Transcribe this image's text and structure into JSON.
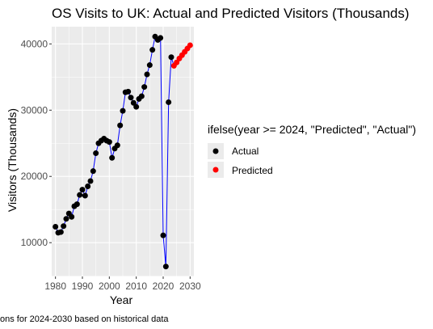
{
  "chart_data": {
    "type": "scatter",
    "title": "OS Visits to UK: Actual and Predicted Visitors (Thousands)",
    "xlabel": "Year",
    "ylabel": "Visitors (Thousands)",
    "caption": "ons for 2024-2030 based on historical data",
    "xlim": [
      1978.6,
      2031.4
    ],
    "ylim": [
      4900,
      42600
    ],
    "x_ticks": [
      1980,
      1990,
      2000,
      2010,
      2020,
      2030
    ],
    "y_ticks": [
      10000,
      20000,
      30000,
      40000
    ],
    "x_tick_labels": [
      "1980",
      "1990",
      "2000",
      "2010",
      "2020",
      "2030"
    ],
    "y_tick_labels": [
      "10000",
      "20000",
      "30000",
      "40000"
    ],
    "grid": true,
    "line_color": "#0000ff",
    "legend": {
      "title": "ifelse(year >= 2024, \"Predicted\", \"Actual\")",
      "position": "right",
      "entries": [
        {
          "label": "Actual",
          "color": "#000000"
        },
        {
          "label": "Predicted",
          "color": "#ff0000"
        }
      ]
    },
    "series": [
      {
        "name": "Actual",
        "color": "#000000",
        "x": [
          1980,
          1981,
          1982,
          1983,
          1984,
          1985,
          1986,
          1987,
          1988,
          1989,
          1990,
          1991,
          1992,
          1993,
          1994,
          1995,
          1996,
          1997,
          1998,
          1999,
          2000,
          2001,
          2002,
          2003,
          2004,
          2005,
          2006,
          2007,
          2008,
          2009,
          2010,
          2011,
          2012,
          2013,
          2014,
          2015,
          2016,
          2017,
          2018,
          2019,
          2020,
          2021,
          2022,
          2023
        ],
        "y": [
          12400,
          11500,
          11600,
          12500,
          13600,
          14400,
          13900,
          15500,
          15800,
          17200,
          18000,
          17100,
          18500,
          19300,
          20800,
          23500,
          25000,
          25400,
          25700,
          25400,
          25200,
          22800,
          24200,
          24700,
          27700,
          29900,
          32700,
          32800,
          31900,
          31100,
          30500,
          31700,
          32100,
          33500,
          35400,
          36800,
          39100,
          41100,
          40600,
          40900,
          11100,
          6400,
          31200,
          38000
        ]
      },
      {
        "name": "Predicted",
        "color": "#ff0000",
        "x": [
          2024,
          2025,
          2026,
          2027,
          2028,
          2029,
          2030
        ],
        "y": [
          36700,
          37200,
          37800,
          38300,
          38800,
          39300,
          39800
        ]
      }
    ]
  }
}
